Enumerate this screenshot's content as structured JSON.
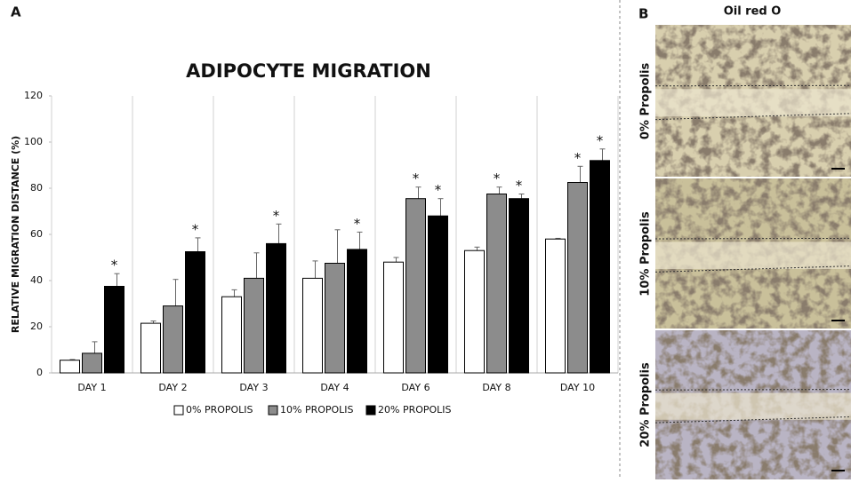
{
  "panel_labels": {
    "a": "A",
    "b": "B"
  },
  "chart_data": {
    "type": "bar",
    "title": "ADIPOCYTE MIGRATION",
    "y_label": "RELATIVE MIGRATION DISTANCE (%)",
    "categories": [
      "DAY 1",
      "DAY 2",
      "DAY 3",
      "DAY 4",
      "DAY 6",
      "DAY 8",
      "DAY 10"
    ],
    "series": [
      {
        "name": "0% PROPOLIS",
        "color": "#ffffff",
        "values": [
          5.5,
          21.5,
          33,
          41,
          48,
          53,
          58
        ],
        "errors": [
          0.3,
          1,
          3,
          7.5,
          2,
          1.5,
          0.3
        ]
      },
      {
        "name": "10% PROPOLIS",
        "color": "#8c8c8c",
        "values": [
          8.5,
          29,
          41,
          47.5,
          75.5,
          77.5,
          82.5
        ],
        "errors": [
          5,
          11.5,
          11,
          14.5,
          5,
          3,
          7
        ]
      },
      {
        "name": "20% PROPOLIS",
        "color": "#000000",
        "values": [
          37.5,
          52.5,
          56,
          53.5,
          68,
          75.5,
          92
        ],
        "errors": [
          5.5,
          6,
          8.5,
          7.5,
          7.5,
          2,
          5
        ]
      }
    ],
    "annotations": [
      {
        "series": 2,
        "category": 0,
        "text": "*"
      },
      {
        "series": 2,
        "category": 1,
        "text": "*"
      },
      {
        "series": 2,
        "category": 2,
        "text": "*"
      },
      {
        "series": 2,
        "category": 3,
        "text": "*"
      },
      {
        "series": 1,
        "category": 4,
        "text": "*"
      },
      {
        "series": 2,
        "category": 4,
        "text": "*"
      },
      {
        "series": 1,
        "category": 5,
        "text": "*"
      },
      {
        "series": 2,
        "category": 5,
        "text": "*"
      },
      {
        "series": 1,
        "category": 6,
        "text": "*"
      },
      {
        "series": 2,
        "category": 6,
        "text": "*"
      }
    ],
    "ylim": [
      0,
      120
    ],
    "yticks": [
      0,
      20,
      40,
      60,
      80,
      100,
      120
    ],
    "grid": "vertical",
    "legend": "bottom"
  },
  "micrographs": {
    "title": "Oil red O",
    "rows": [
      "0% Propolis",
      "10% Propolis",
      "20% Propolis"
    ]
  }
}
